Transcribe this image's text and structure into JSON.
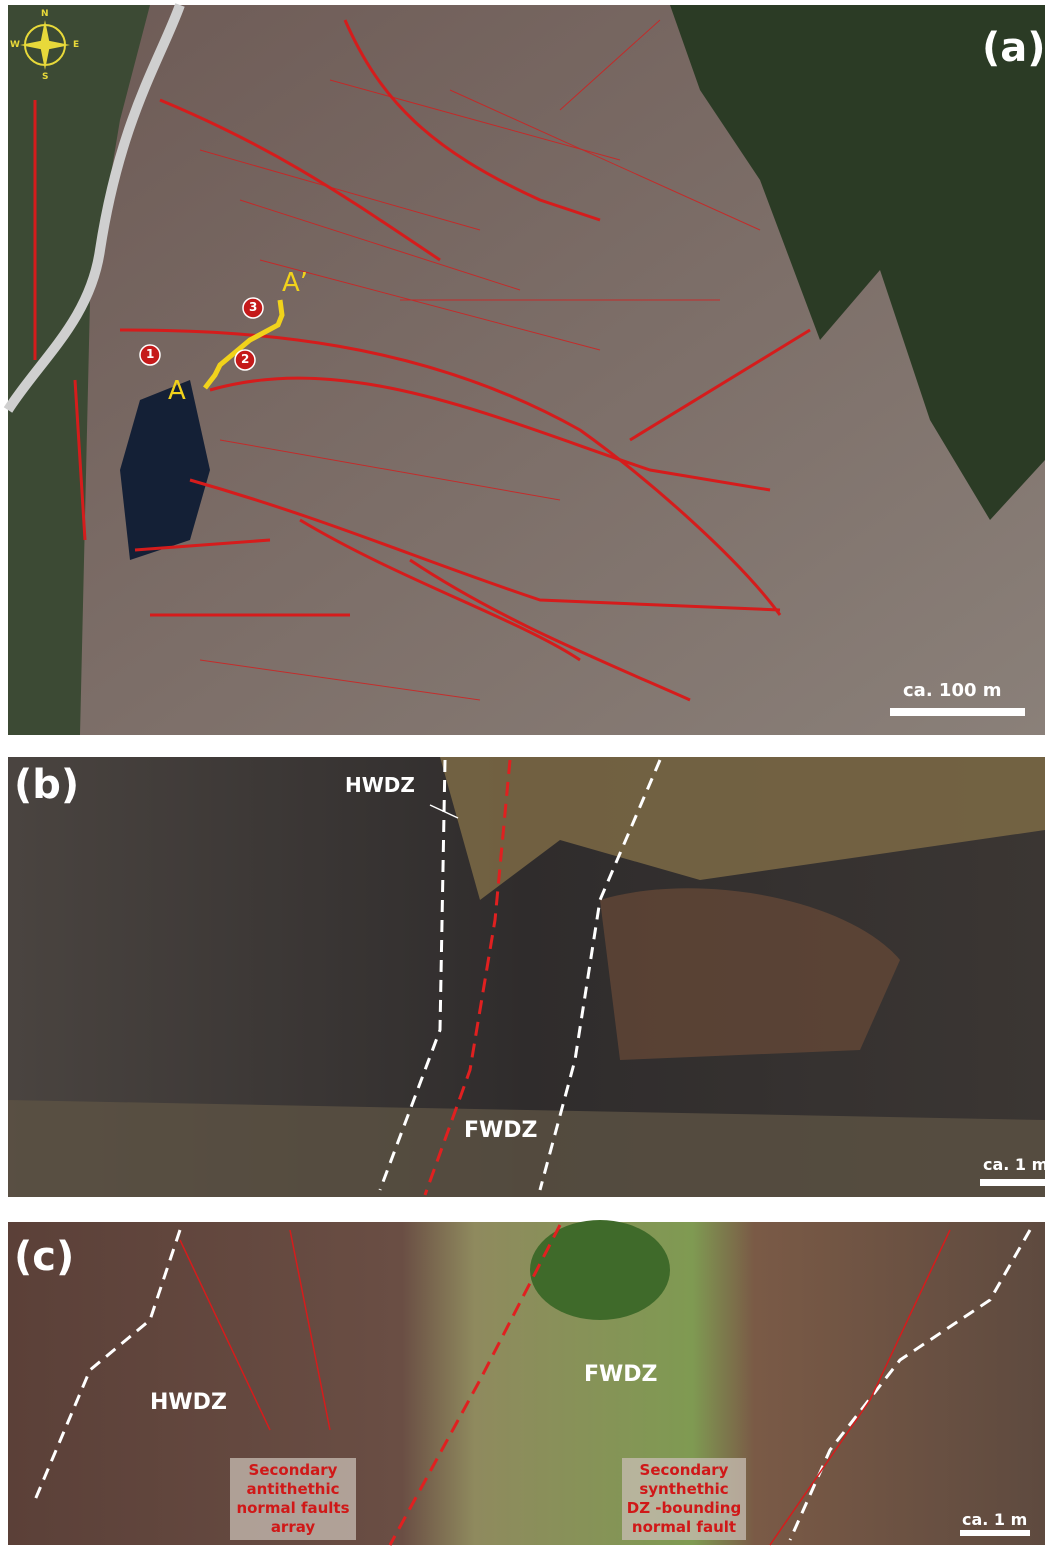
{
  "panels": [
    {
      "label": "(a)",
      "compass": {
        "n": "N",
        "e": "E",
        "s": "S",
        "w": "W"
      },
      "section_start": "A",
      "section_end": "A’",
      "markers": [
        "1",
        "2",
        "3"
      ],
      "scale": "ca. 100 m"
    },
    {
      "label": "(b)",
      "annotations": [
        "HWDZ",
        "FWDZ"
      ],
      "scale": "ca. 1 m"
    },
    {
      "label": "(c)",
      "annotations": [
        "HWDZ",
        "FWDZ"
      ],
      "notes": [
        "Secondary antithethic normal faults array",
        "Secondary synthethic DZ -bounding normal fault"
      ],
      "scale": "ca. 1 m"
    }
  ]
}
